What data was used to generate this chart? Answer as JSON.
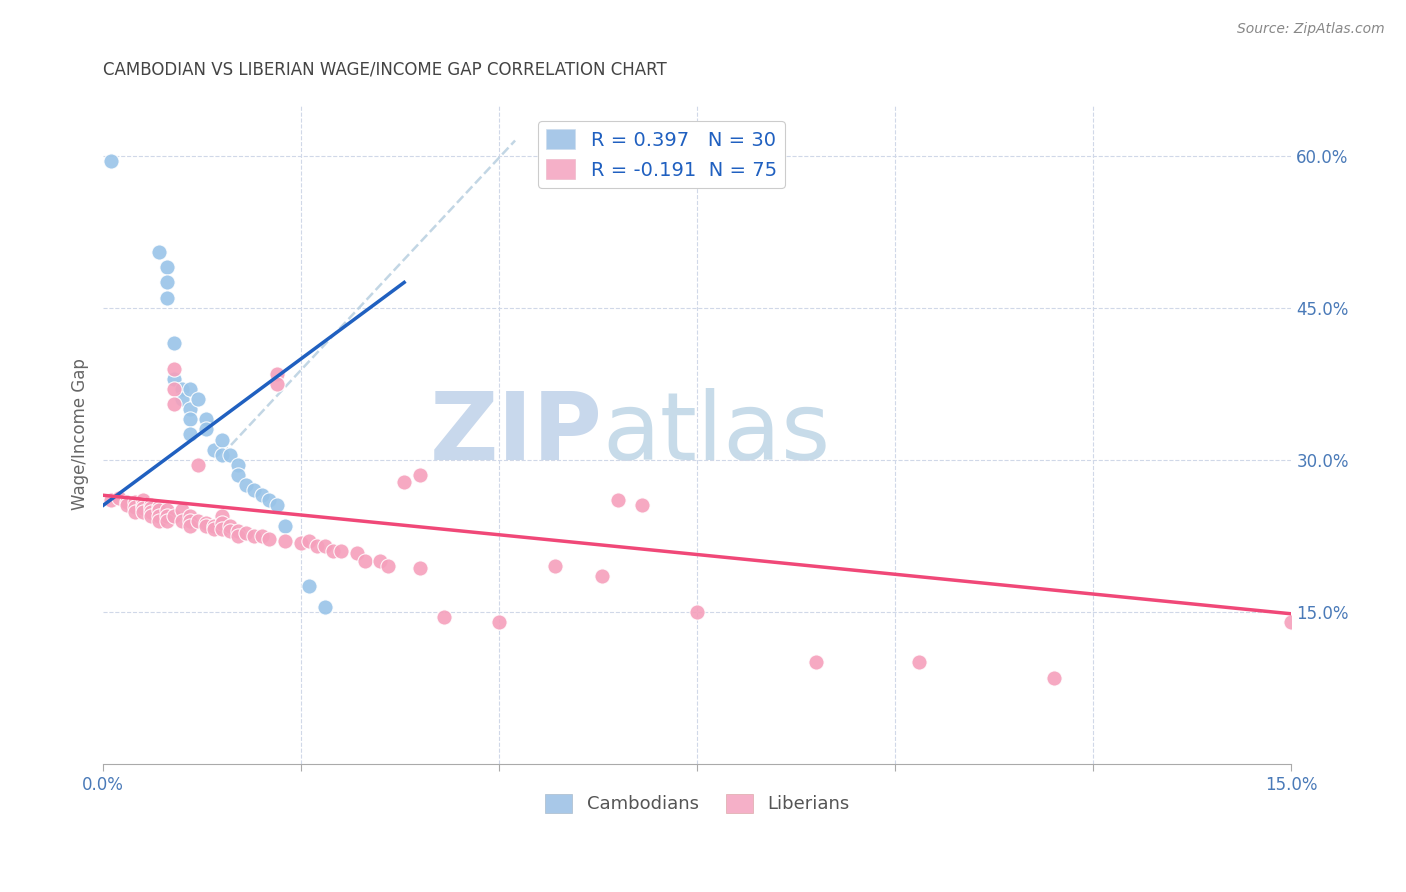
{
  "title": "CAMBODIAN VS LIBERIAN WAGE/INCOME GAP CORRELATION CHART",
  "source": "Source: ZipAtlas.com",
  "ylabel": "Wage/Income Gap",
  "xlim": [
    0.0,
    0.15
  ],
  "ylim": [
    0.0,
    0.65
  ],
  "xticks": [
    0.0,
    0.025,
    0.05,
    0.075,
    0.1,
    0.125,
    0.15
  ],
  "xtick_labels_show": [
    true,
    false,
    false,
    false,
    false,
    false,
    true
  ],
  "yticks_right": [
    0.15,
    0.3,
    0.45,
    0.6
  ],
  "cambodian_color": "#99c4e8",
  "liberian_color": "#f5a0bc",
  "cambodian_line_color": "#2060c0",
  "liberian_line_color": "#f04878",
  "diag_color": "#b8cfe0",
  "watermark_color": "#d8e8f4",
  "cambodian_points": [
    [
      0.001,
      0.595
    ],
    [
      0.007,
      0.505
    ],
    [
      0.008,
      0.49
    ],
    [
      0.008,
      0.475
    ],
    [
      0.008,
      0.46
    ],
    [
      0.009,
      0.415
    ],
    [
      0.009,
      0.38
    ],
    [
      0.01,
      0.37
    ],
    [
      0.01,
      0.36
    ],
    [
      0.011,
      0.37
    ],
    [
      0.011,
      0.35
    ],
    [
      0.011,
      0.34
    ],
    [
      0.011,
      0.325
    ],
    [
      0.012,
      0.36
    ],
    [
      0.013,
      0.34
    ],
    [
      0.013,
      0.33
    ],
    [
      0.014,
      0.31
    ],
    [
      0.015,
      0.32
    ],
    [
      0.015,
      0.305
    ],
    [
      0.016,
      0.305
    ],
    [
      0.017,
      0.295
    ],
    [
      0.017,
      0.285
    ],
    [
      0.018,
      0.275
    ],
    [
      0.019,
      0.27
    ],
    [
      0.02,
      0.265
    ],
    [
      0.021,
      0.26
    ],
    [
      0.022,
      0.255
    ],
    [
      0.023,
      0.235
    ],
    [
      0.026,
      0.175
    ],
    [
      0.028,
      0.155
    ]
  ],
  "liberian_points": [
    [
      0.001,
      0.26
    ],
    [
      0.002,
      0.262
    ],
    [
      0.003,
      0.258
    ],
    [
      0.003,
      0.255
    ],
    [
      0.004,
      0.258
    ],
    [
      0.004,
      0.253
    ],
    [
      0.004,
      0.248
    ],
    [
      0.005,
      0.26
    ],
    [
      0.005,
      0.255
    ],
    [
      0.005,
      0.252
    ],
    [
      0.005,
      0.248
    ],
    [
      0.006,
      0.255
    ],
    [
      0.006,
      0.252
    ],
    [
      0.006,
      0.248
    ],
    [
      0.006,
      0.245
    ],
    [
      0.007,
      0.253
    ],
    [
      0.007,
      0.25
    ],
    [
      0.007,
      0.245
    ],
    [
      0.007,
      0.24
    ],
    [
      0.008,
      0.25
    ],
    [
      0.008,
      0.245
    ],
    [
      0.008,
      0.24
    ],
    [
      0.009,
      0.39
    ],
    [
      0.009,
      0.37
    ],
    [
      0.009,
      0.355
    ],
    [
      0.009,
      0.245
    ],
    [
      0.01,
      0.25
    ],
    [
      0.01,
      0.24
    ],
    [
      0.011,
      0.245
    ],
    [
      0.011,
      0.24
    ],
    [
      0.011,
      0.235
    ],
    [
      0.012,
      0.295
    ],
    [
      0.012,
      0.24
    ],
    [
      0.013,
      0.238
    ],
    [
      0.013,
      0.235
    ],
    [
      0.014,
      0.235
    ],
    [
      0.014,
      0.232
    ],
    [
      0.015,
      0.245
    ],
    [
      0.015,
      0.238
    ],
    [
      0.015,
      0.232
    ],
    [
      0.016,
      0.235
    ],
    [
      0.016,
      0.23
    ],
    [
      0.017,
      0.23
    ],
    [
      0.017,
      0.225
    ],
    [
      0.018,
      0.228
    ],
    [
      0.019,
      0.225
    ],
    [
      0.02,
      0.225
    ],
    [
      0.021,
      0.222
    ],
    [
      0.022,
      0.385
    ],
    [
      0.022,
      0.375
    ],
    [
      0.023,
      0.22
    ],
    [
      0.025,
      0.218
    ],
    [
      0.026,
      0.22
    ],
    [
      0.027,
      0.215
    ],
    [
      0.028,
      0.215
    ],
    [
      0.029,
      0.21
    ],
    [
      0.03,
      0.21
    ],
    [
      0.032,
      0.208
    ],
    [
      0.033,
      0.2
    ],
    [
      0.035,
      0.2
    ],
    [
      0.036,
      0.195
    ],
    [
      0.038,
      0.278
    ],
    [
      0.04,
      0.193
    ],
    [
      0.043,
      0.145
    ],
    [
      0.05,
      0.14
    ],
    [
      0.057,
      0.195
    ],
    [
      0.063,
      0.185
    ],
    [
      0.065,
      0.26
    ],
    [
      0.068,
      0.255
    ],
    [
      0.075,
      0.15
    ],
    [
      0.09,
      0.1
    ],
    [
      0.103,
      0.1
    ],
    [
      0.15,
      0.14
    ],
    [
      0.04,
      0.285
    ],
    [
      0.12,
      0.085
    ]
  ]
}
